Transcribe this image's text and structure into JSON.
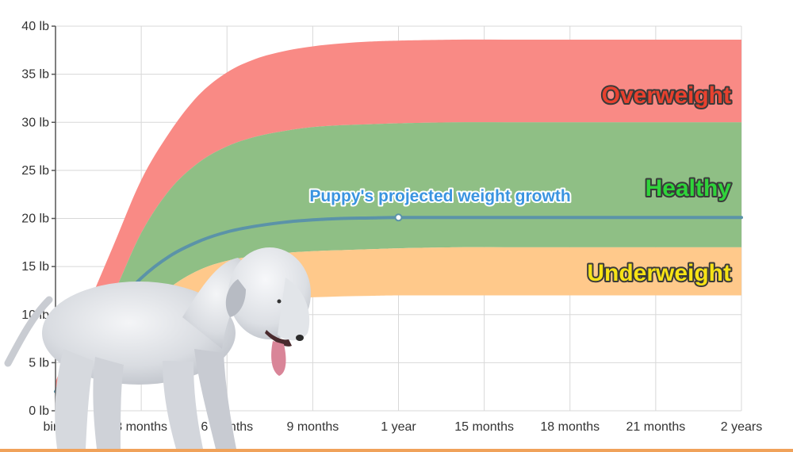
{
  "chart_data": {
    "type": "area",
    "title": "",
    "xlabel": "",
    "ylabel": "",
    "x_ticks": [
      {
        "month": 0,
        "label": "birth"
      },
      {
        "month": 3,
        "label": "3 months"
      },
      {
        "month": 6,
        "label": "6 months"
      },
      {
        "month": 9,
        "label": "9 months"
      },
      {
        "month": 12,
        "label": "1 year"
      },
      {
        "month": 15,
        "label": "15 months"
      },
      {
        "month": 18,
        "label": "18 months"
      },
      {
        "month": 21,
        "label": "21 months"
      },
      {
        "month": 24,
        "label": "2 years"
      }
    ],
    "y_ticks": [
      {
        "value": 0,
        "label": "0 lb"
      },
      {
        "value": 5,
        "label": "5 lb"
      },
      {
        "value": 10,
        "label": "10 lb"
      },
      {
        "value": 15,
        "label": "15 lb"
      },
      {
        "value": 20,
        "label": "20 lb"
      },
      {
        "value": 25,
        "label": "25 lb"
      },
      {
        "value": 30,
        "label": "30 lb"
      },
      {
        "value": 35,
        "label": "35 lb"
      },
      {
        "value": 40,
        "label": "40 lb"
      }
    ],
    "xlim": [
      0,
      24
    ],
    "ylim": [
      0,
      40
    ],
    "grid": true,
    "bands": [
      {
        "label": "Overweight",
        "color": "#f98a85",
        "label_color": "#e8412e",
        "x": [
          0,
          1,
          2,
          3,
          4,
          5,
          6,
          7,
          8,
          9,
          10,
          11,
          12,
          14,
          16,
          18,
          20,
          22,
          24
        ],
        "lower": [
          2.2,
          6.5,
          12,
          18.5,
          23,
          25.8,
          27.5,
          28.5,
          29.1,
          29.5,
          29.7,
          29.8,
          29.9,
          30,
          30,
          30,
          30,
          30,
          30
        ],
        "upper": [
          3,
          10,
          17,
          24,
          29,
          32.8,
          35.2,
          36.6,
          37.4,
          37.9,
          38.2,
          38.4,
          38.5,
          38.6,
          38.6,
          38.6,
          38.6,
          38.6,
          38.6
        ]
      },
      {
        "label": "Healthy",
        "color": "#8fbf85",
        "label_color": "#2fd43a",
        "x": [
          0,
          1,
          2,
          3,
          4,
          5,
          6,
          7,
          8,
          9,
          10,
          11,
          12,
          14,
          16,
          18,
          20,
          22,
          24
        ],
        "lower": [
          2,
          4.2,
          7,
          10,
          12.8,
          14.6,
          15.6,
          16.1,
          16.4,
          16.6,
          16.7,
          16.8,
          16.9,
          17,
          17,
          17,
          17,
          17,
          17
        ],
        "upper": [
          2.2,
          6.5,
          12,
          18.5,
          23,
          25.8,
          27.5,
          28.5,
          29.1,
          29.5,
          29.7,
          29.8,
          29.9,
          30,
          30,
          30,
          30,
          30,
          30
        ]
      },
      {
        "label": "Underweight",
        "color": "#ffc98b",
        "label_color": "#f6e215",
        "x": [
          0,
          1,
          2,
          3,
          4,
          5,
          6,
          7,
          8,
          9,
          10,
          11,
          12,
          14,
          16,
          18,
          20,
          22,
          24
        ],
        "lower": [
          1.5,
          3,
          5,
          7.5,
          9.3,
          10.5,
          11.1,
          11.5,
          11.7,
          11.8,
          11.9,
          11.95,
          12,
          12,
          12,
          12,
          12,
          12,
          12
        ],
        "upper": [
          2,
          4.2,
          7,
          10,
          12.8,
          14.6,
          15.6,
          16.1,
          16.4,
          16.6,
          16.7,
          16.8,
          16.9,
          17,
          17,
          17,
          17,
          17,
          17
        ]
      }
    ],
    "series": [
      {
        "name": "Puppy's projected weight growth",
        "color": "#5b93a8",
        "label_color": "#3a94e0",
        "x": [
          0,
          1,
          2,
          3,
          4,
          5,
          6,
          7,
          8,
          9,
          10,
          11,
          12,
          14,
          16,
          18,
          20,
          22,
          24
        ],
        "y": [
          2,
          6.5,
          10.5,
          13.8,
          16.1,
          17.6,
          18.6,
          19.2,
          19.6,
          19.85,
          20,
          20.05,
          20.1,
          20.1,
          20.1,
          20.1,
          20.1,
          20.1,
          20.1
        ],
        "marker_month": 12
      }
    ]
  },
  "colors": {
    "grid": "#d8d8d8",
    "axis": "#555555",
    "bottom_rule": "#f0a25a"
  },
  "photo": {
    "icon": "bedlington-terrier-dog-icon"
  }
}
